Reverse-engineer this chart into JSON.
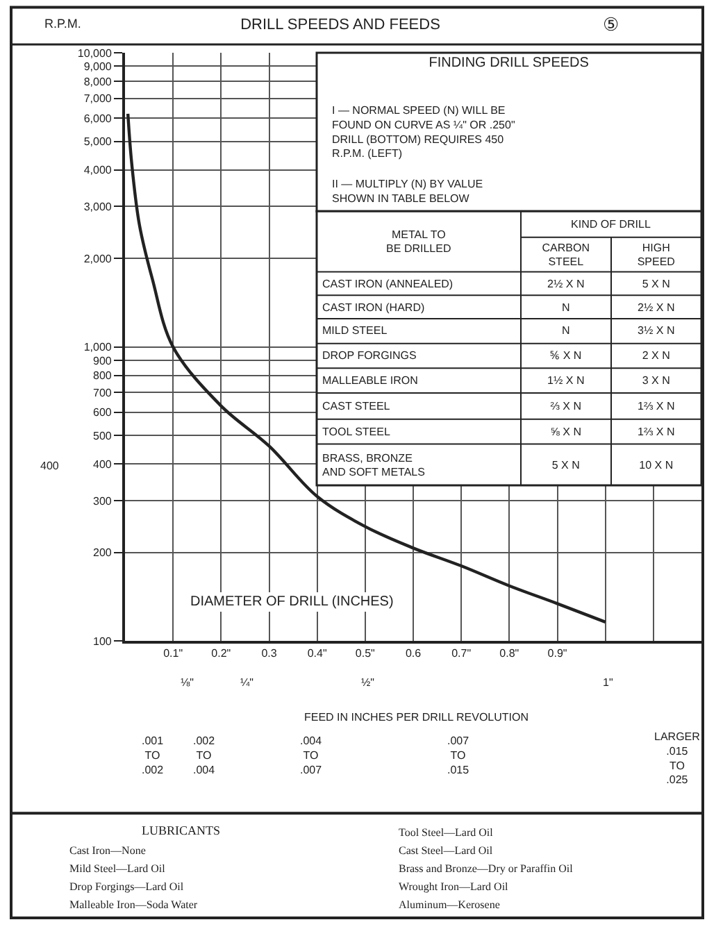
{
  "chart_data": {
    "type": "line",
    "title": "DRILL SPEEDS AND FEEDS",
    "ylabel": "R.P.M.",
    "xlabel": "DIAMETER OF DRILL (INCHES)",
    "x": [
      0.006,
      0.014,
      0.03,
      0.057,
      0.1,
      0.2,
      0.3,
      0.4,
      0.5,
      0.6,
      0.7,
      0.8,
      0.9,
      1.0
    ],
    "series": [
      {
        "color": "#222222",
        "values": [
          6200,
          4200,
          2600,
          1700,
          1000,
          630,
          460,
          310,
          245,
          207,
          180,
          154,
          134,
          116
        ]
      }
    ],
    "xlim": [
      0,
      1.2
    ],
    "ylim": [
      100,
      10000
    ],
    "log": "y",
    "grid": true,
    "marker": "none",
    "line_style": "solid",
    "xticks": [
      {
        "value": 0.1,
        "label": "0.1\""
      },
      {
        "value": 0.2,
        "label": "0.2\""
      },
      0.3,
      {
        "value": 0.4,
        "label": "0.4\""
      },
      {
        "value": 0.5,
        "label": "0.5\""
      },
      0.6,
      {
        "value": 0.7,
        "label": "0.7\""
      },
      {
        "value": 0.8,
        "label": "0.8\""
      },
      {
        "value": 0.9,
        "label": "0.9\""
      },
      {
        "value": 1.0,
        "label": null
      },
      {
        "value": 1.1,
        "label": null
      }
    ],
    "yticks": [
      100,
      200,
      300,
      400,
      500,
      600,
      700,
      800,
      900,
      {
        "value": 1000,
        "label": "1,000"
      },
      {
        "value": 2000,
        "label": "2,000"
      },
      {
        "value": 3000,
        "label": "3,000"
      },
      {
        "value": 4000,
        "label": "4,000"
      },
      {
        "value": 5000,
        "label": "5,000"
      },
      {
        "value": 6000,
        "label": "6,000"
      },
      {
        "value": 7000,
        "label": "7,000"
      },
      {
        "value": 8000,
        "label": "8,000"
      },
      {
        "value": 9000,
        "label": "9,000"
      },
      {
        "value": 10000,
        "label": "10,000"
      }
    ],
    "annotations": [
      "FINDING DRILL SPEEDS",
      "I — NORMAL SPEED (N) WILL BE\nFOUND ON CURVE AS ¼\" OR .250\"\nDRILL (BOTTOM) REQUIRES 450\nR.P.M. (LEFT)",
      "II — MULTIPLY (N) BY VALUE\nSHOWN IN TABLE BELOW",
      "METAL TO\nBE DRILLED",
      "KIND OF DRILL",
      "CARBON\nSTEEL",
      "HIGH\nSPEED",
      "CAST IRON (ANNEALED)",
      "2½ X N",
      "5 X N",
      "CAST IRON (HARD)",
      "N",
      "2½ X N",
      "MILD STEEL",
      "N",
      "3½ X N",
      "DROP FORGINGS",
      "⅚ X N",
      "2 X N",
      "MALLEABLE IRON",
      "1½ X N",
      "3 X N",
      "CAST STEEL",
      "⅔ X N",
      "1⅔ X N",
      "TOOL STEEL",
      "⅝ X N",
      "1⅔ X N",
      "BRASS, BRONZE\nAND SOFT METALS",
      "5 X N",
      "10 X N",
      "FEED IN INCHES PER DRILL REVOLUTION",
      ".001\nTO\n.002",
      ".002\nTO\n.004",
      ".004\nTO\n.007",
      ".007\nTO\n.015",
      "LARGER\n.015\nTO\n.025",
      "LUBRICANTS",
      "Cast Iron—None",
      "Mild Steel—Lard Oil",
      "Drop Forgings—Lard Oil",
      "Malleable Iron—Soda Water",
      "Tool Steel—Lard Oil",
      "Cast Steel—Lard Oil",
      "Brass and Bronze—Dry or Paraffin Oil",
      "Wrought Iron—Lard Oil",
      "Aluminum—Kerosene",
      "⑤",
      "400",
      "⅛\"",
      "¼\"",
      "½\"",
      "1\""
    ]
  }
}
